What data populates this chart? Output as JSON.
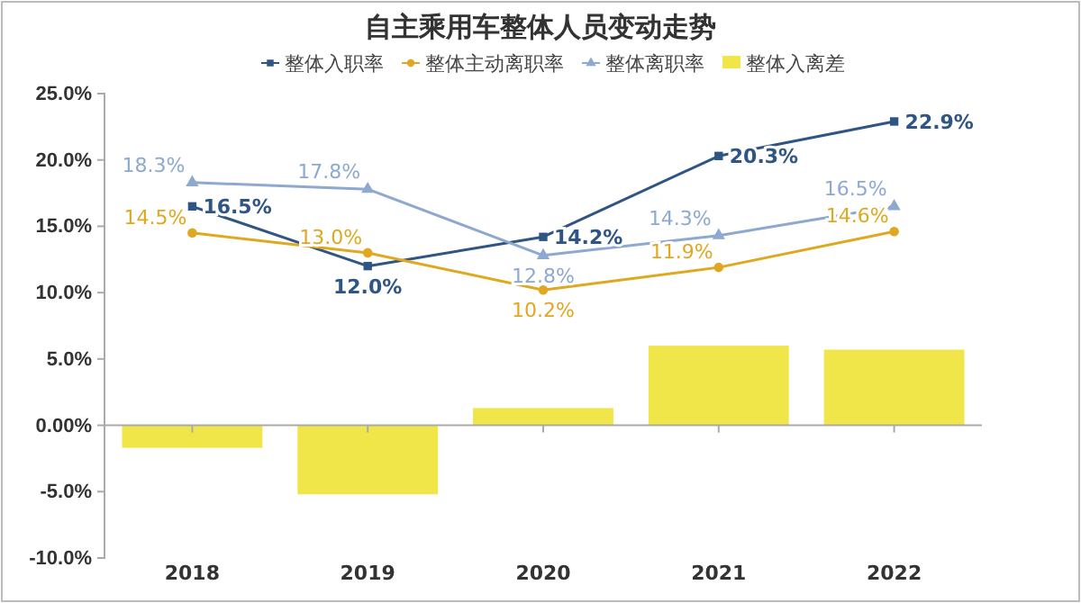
{
  "chart_data": {
    "type": "bar",
    "title": "自主乘用车整体人员变动走势",
    "categories": [
      "2018",
      "2019",
      "2020",
      "2021",
      "2022"
    ],
    "series": [
      {
        "name": "整体入职率",
        "type": "line",
        "color": "#2e5584",
        "marker": "square",
        "values": [
          16.5,
          12.0,
          14.2,
          20.3,
          22.9
        ],
        "value_labels": [
          "16.5%",
          "12.0%",
          "14.2%",
          "20.3%",
          "22.9%"
        ]
      },
      {
        "name": "整体主动离职率",
        "type": "line",
        "color": "#e0a820",
        "marker": "circle",
        "values": [
          14.5,
          13.0,
          10.2,
          11.9,
          14.6
        ],
        "value_labels": [
          "14.5%",
          "13.0%",
          "10.2%",
          "11.9%",
          "14.6%"
        ]
      },
      {
        "name": "整体离职率",
        "type": "line",
        "color": "#8ea9d0",
        "marker": "triangle",
        "values": [
          18.3,
          17.8,
          12.8,
          14.3,
          16.5
        ],
        "value_labels": [
          "18.3%",
          "17.8%",
          "12.8%",
          "14.3%",
          "16.5%"
        ]
      },
      {
        "name": "整体入离差",
        "color": "#f0e64a",
        "values": [
          -1.7,
          -5.2,
          1.3,
          6.0,
          5.7
        ]
      }
    ],
    "ylim": [
      -10,
      25
    ],
    "yticks": [
      {
        "value": -10,
        "label": "-10.0%"
      },
      {
        "value": -5,
        "label": "-5.0%"
      },
      {
        "value": 0,
        "label": "0.00%"
      },
      {
        "value": 5,
        "label": "5.0%"
      },
      {
        "value": 10,
        "label": "10.0%"
      },
      {
        "value": 15,
        "label": "15.0%"
      },
      {
        "value": 20,
        "label": "20.0%"
      },
      {
        "value": 25,
        "label": "25.0%"
      }
    ],
    "legend": "top"
  }
}
